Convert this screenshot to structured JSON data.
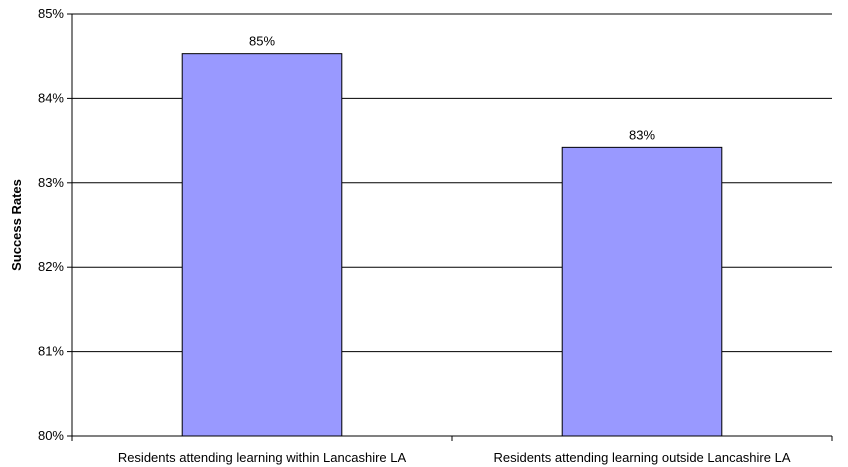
{
  "chart_data": {
    "type": "bar",
    "title": "",
    "xlabel": "",
    "ylabel": "Success Rates",
    "categories": [
      "Residents attending learning within Lancashire LA",
      "Residents attending learning outside Lancashire LA"
    ],
    "values": [
      84.53,
      83.42
    ],
    "data_labels": [
      "85%",
      "83%"
    ],
    "ylim": [
      80,
      85
    ],
    "yticks": [
      80,
      81,
      82,
      83,
      84,
      85
    ],
    "ytick_labels": [
      "80%",
      "81%",
      "82%",
      "83%",
      "84%",
      "85%"
    ],
    "grid": true,
    "legend": "none",
    "bar_color": "#9999ff",
    "bar_edge_color": "#000000",
    "grid_color": "#000000"
  }
}
